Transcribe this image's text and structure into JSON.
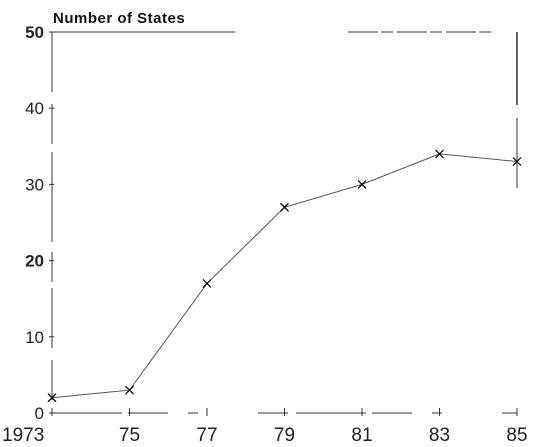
{
  "chart_data": {
    "type": "line",
    "title": "",
    "ylabel": "Number of States",
    "xlabel": "",
    "x": [
      1973,
      1975,
      1977,
      1979,
      1981,
      1983,
      1985
    ],
    "x_tick_labels": [
      "1973",
      "75",
      "77",
      "79",
      "81",
      "83",
      "85"
    ],
    "y_ticks": [
      0,
      10,
      20,
      30,
      40,
      50
    ],
    "y_tick_labels": [
      "0",
      "10",
      "20",
      "30",
      "40",
      "50"
    ],
    "ylim": [
      0,
      50
    ],
    "xlim": [
      1973,
      1985
    ],
    "grid": false,
    "series": [
      {
        "values": [
          2,
          3,
          17,
          27,
          30,
          34,
          33
        ]
      }
    ],
    "marker": "x",
    "line_color": "#555555"
  }
}
